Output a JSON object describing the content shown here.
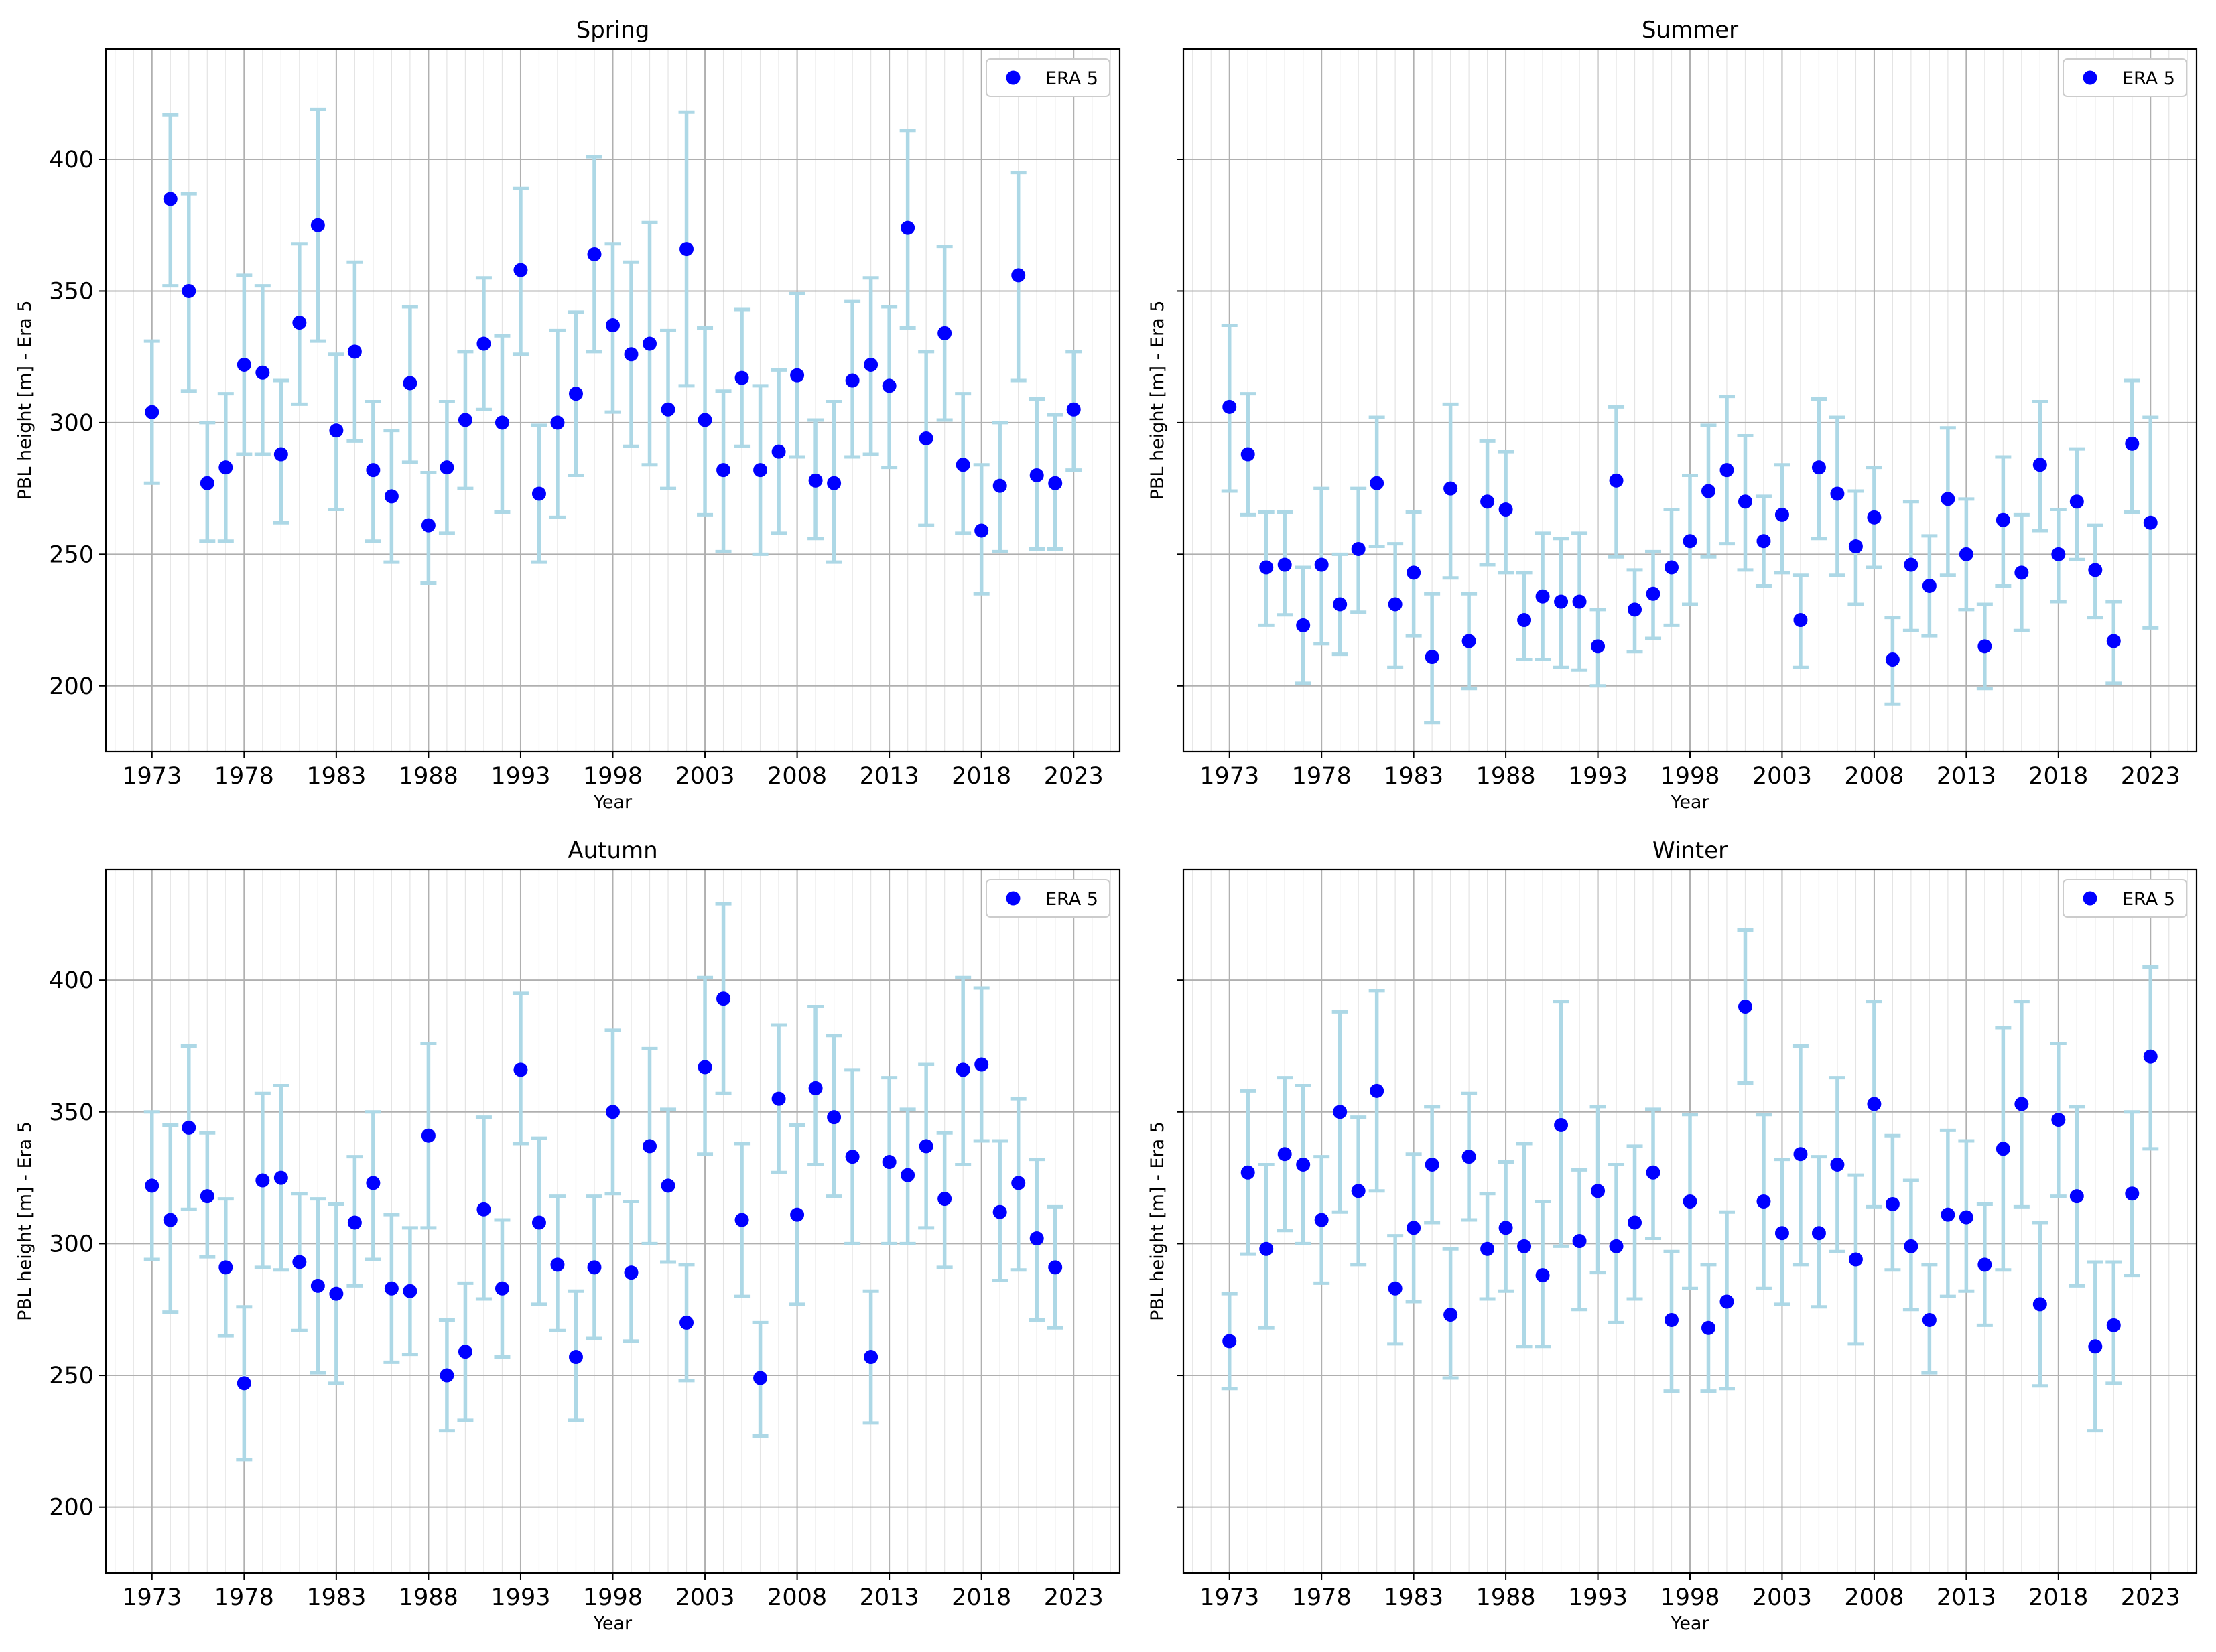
{
  "chart_data": [
    {
      "type": "scatter",
      "title": "Spring",
      "xlabel": "Year",
      "ylabel": "PBL height [m] - Era 5",
      "xlim": [
        1970.5,
        2025.5
      ],
      "ylim": [
        175,
        442
      ],
      "xticks": [
        "1973",
        "1978",
        "1983",
        "1988",
        "1993",
        "1998",
        "2003",
        "2008",
        "2013",
        "2018",
        "2023"
      ],
      "yticks": [
        "200",
        "250",
        "300",
        "350",
        "400"
      ],
      "show_ytick_labels": true,
      "grid": true,
      "legend": "upper right",
      "series": [
        {
          "name": "ERA 5",
          "color": "#0000ff",
          "errorbar_color": "#add8e6",
          "x": [
            1973,
            1974,
            1975,
            1976,
            1977,
            1978,
            1979,
            1980,
            1981,
            1982,
            1983,
            1984,
            1985,
            1986,
            1987,
            1988,
            1989,
            1990,
            1991,
            1992,
            1993,
            1994,
            1995,
            1996,
            1997,
            1998,
            1999,
            2000,
            2001,
            2002,
            2003,
            2004,
            2005,
            2006,
            2007,
            2008,
            2009,
            2010,
            2011,
            2012,
            2013,
            2014,
            2015,
            2016,
            2017,
            2018,
            2019,
            2020,
            2021,
            2022,
            2023
          ],
          "y": [
            304,
            385,
            350,
            277,
            283,
            322,
            319,
            288,
            338,
            375,
            297,
            327,
            282,
            272,
            315,
            261,
            283,
            301,
            330,
            300,
            358,
            273,
            300,
            311,
            364,
            337,
            326,
            330,
            305,
            366,
            301,
            282,
            317,
            282,
            289,
            318,
            278,
            277,
            316,
            322,
            314,
            374,
            294,
            334,
            284,
            259,
            276,
            356,
            280,
            277,
            305
          ],
          "yerr_low": [
            277,
            352,
            312,
            255,
            255,
            288,
            288,
            262,
            307,
            331,
            267,
            293,
            255,
            247,
            285,
            239,
            258,
            275,
            305,
            266,
            326,
            247,
            264,
            280,
            327,
            304,
            291,
            284,
            275,
            314,
            265,
            251,
            291,
            250,
            258,
            287,
            256,
            247,
            287,
            288,
            283,
            336,
            261,
            301,
            258,
            235,
            251,
            316,
            252,
            252,
            282
          ],
          "yerr_high": [
            331,
            417,
            387,
            300,
            311,
            356,
            352,
            316,
            368,
            419,
            326,
            361,
            308,
            297,
            344,
            281,
            308,
            327,
            355,
            333,
            389,
            299,
            335,
            342,
            401,
            368,
            361,
            376,
            335,
            418,
            336,
            312,
            343,
            314,
            320,
            349,
            301,
            308,
            346,
            355,
            344,
            411,
            327,
            367,
            311,
            284,
            300,
            395,
            309,
            303,
            327
          ]
        }
      ]
    },
    {
      "type": "scatter",
      "title": "Summer",
      "xlabel": "Year",
      "ylabel": "PBL height [m] - Era 5",
      "xlim": [
        1970.5,
        2025.5
      ],
      "ylim": [
        175,
        442
      ],
      "xticks": [
        "1973",
        "1978",
        "1983",
        "1988",
        "1993",
        "1998",
        "2003",
        "2008",
        "2013",
        "2018",
        "2023"
      ],
      "yticks": [
        "200",
        "250",
        "300",
        "350",
        "400"
      ],
      "show_ytick_labels": false,
      "grid": true,
      "legend": "upper right",
      "series": [
        {
          "name": "ERA 5",
          "color": "#0000ff",
          "errorbar_color": "#add8e6",
          "x": [
            1973,
            1974,
            1975,
            1976,
            1977,
            1978,
            1979,
            1980,
            1981,
            1982,
            1983,
            1984,
            1985,
            1986,
            1987,
            1988,
            1989,
            1990,
            1991,
            1992,
            1993,
            1994,
            1995,
            1996,
            1997,
            1998,
            1999,
            2000,
            2001,
            2002,
            2003,
            2004,
            2005,
            2006,
            2007,
            2008,
            2009,
            2010,
            2011,
            2012,
            2013,
            2014,
            2015,
            2016,
            2017,
            2018,
            2019,
            2020,
            2021,
            2022,
            2023
          ],
          "y": [
            306,
            288,
            245,
            246,
            223,
            246,
            231,
            252,
            277,
            231,
            243,
            211,
            275,
            217,
            270,
            267,
            225,
            234,
            232,
            232,
            215,
            278,
            229,
            235,
            245,
            255,
            274,
            282,
            270,
            255,
            265,
            225,
            283,
            273,
            253,
            264,
            210,
            246,
            238,
            271,
            250,
            215,
            263,
            243,
            284,
            250,
            270,
            244,
            217,
            292,
            262
          ],
          "yerr_low": [
            274,
            265,
            223,
            227,
            201,
            216,
            212,
            228,
            253,
            207,
            219,
            186,
            241,
            199,
            246,
            243,
            210,
            210,
            207,
            206,
            200,
            249,
            213,
            218,
            223,
            231,
            249,
            254,
            244,
            238,
            243,
            207,
            256,
            242,
            231,
            245,
            193,
            221,
            219,
            242,
            229,
            199,
            238,
            221,
            259,
            232,
            248,
            226,
            201,
            266,
            222
          ],
          "yerr_high": [
            337,
            311,
            266,
            266,
            245,
            275,
            250,
            275,
            302,
            254,
            266,
            235,
            307,
            235,
            293,
            289,
            243,
            258,
            256,
            258,
            229,
            306,
            244,
            251,
            267,
            280,
            299,
            310,
            295,
            272,
            284,
            242,
            309,
            302,
            274,
            283,
            226,
            270,
            257,
            298,
            271,
            231,
            287,
            265,
            308,
            267,
            290,
            261,
            232,
            316,
            302
          ]
        }
      ]
    },
    {
      "type": "scatter",
      "title": "Autumn",
      "xlabel": "Year",
      "ylabel": "PBL height [m] - Era 5",
      "xlim": [
        1970.5,
        2025.5
      ],
      "ylim": [
        175,
        442
      ],
      "xticks": [
        "1973",
        "1978",
        "1983",
        "1988",
        "1993",
        "1998",
        "2003",
        "2008",
        "2013",
        "2018",
        "2023"
      ],
      "yticks": [
        "200",
        "250",
        "300",
        "350",
        "400"
      ],
      "show_ytick_labels": true,
      "grid": true,
      "legend": "upper right",
      "series": [
        {
          "name": "ERA 5",
          "color": "#0000ff",
          "errorbar_color": "#add8e6",
          "x": [
            1973,
            1974,
            1975,
            1976,
            1977,
            1978,
            1979,
            1980,
            1981,
            1982,
            1983,
            1984,
            1985,
            1986,
            1987,
            1988,
            1989,
            1990,
            1991,
            1992,
            1993,
            1994,
            1995,
            1996,
            1997,
            1998,
            1999,
            2000,
            2001,
            2002,
            2003,
            2004,
            2005,
            2006,
            2007,
            2008,
            2009,
            2010,
            2011,
            2012,
            2013,
            2014,
            2015,
            2016,
            2017,
            2018,
            2019,
            2020,
            2021,
            2022
          ],
          "y": [
            322,
            309,
            344,
            318,
            291,
            247,
            324,
            325,
            293,
            284,
            281,
            308,
            323,
            283,
            282,
            341,
            250,
            259,
            313,
            283,
            366,
            308,
            292,
            257,
            291,
            350,
            289,
            337,
            322,
            270,
            367,
            393,
            309,
            249,
            355,
            311,
            359,
            348,
            333,
            257,
            331,
            326,
            337,
            317,
            366,
            368,
            312,
            323,
            302,
            291
          ],
          "yerr_low": [
            294,
            274,
            313,
            295,
            265,
            218,
            291,
            290,
            267,
            251,
            247,
            284,
            294,
            255,
            258,
            306,
            229,
            233,
            279,
            257,
            338,
            277,
            267,
            233,
            264,
            319,
            263,
            300,
            293,
            248,
            334,
            357,
            280,
            227,
            327,
            277,
            330,
            318,
            300,
            232,
            300,
            300,
            306,
            291,
            330,
            339,
            286,
            290,
            271,
            268
          ],
          "yerr_high": [
            350,
            345,
            375,
            342,
            317,
            276,
            357,
            360,
            319,
            317,
            315,
            333,
            350,
            311,
            306,
            376,
            271,
            285,
            348,
            309,
            395,
            340,
            318,
            282,
            318,
            381,
            316,
            374,
            351,
            292,
            401,
            429,
            338,
            270,
            383,
            345,
            390,
            379,
            366,
            282,
            363,
            351,
            368,
            342,
            401,
            397,
            339,
            355,
            332,
            314
          ]
        }
      ]
    },
    {
      "type": "scatter",
      "title": "Winter",
      "xlabel": "Year",
      "ylabel": "PBL height [m] - Era 5",
      "xlim": [
        1970.5,
        2025.5
      ],
      "ylim": [
        175,
        442
      ],
      "xticks": [
        "1973",
        "1978",
        "1983",
        "1988",
        "1993",
        "1998",
        "2003",
        "2008",
        "2013",
        "2018",
        "2023"
      ],
      "yticks": [
        "200",
        "250",
        "300",
        "350",
        "400"
      ],
      "show_ytick_labels": false,
      "grid": true,
      "legend": "upper right",
      "series": [
        {
          "name": "ERA 5",
          "color": "#0000ff",
          "errorbar_color": "#add8e6",
          "x": [
            1973,
            1974,
            1975,
            1976,
            1977,
            1978,
            1979,
            1980,
            1981,
            1982,
            1983,
            1984,
            1985,
            1986,
            1987,
            1988,
            1989,
            1990,
            1991,
            1992,
            1993,
            1994,
            1995,
            1996,
            1997,
            1998,
            1999,
            2000,
            2001,
            2002,
            2003,
            2004,
            2005,
            2006,
            2007,
            2008,
            2009,
            2010,
            2011,
            2012,
            2013,
            2014,
            2015,
            2016,
            2017,
            2018,
            2019,
            2020,
            2021,
            2022,
            2023
          ],
          "y": [
            263,
            327,
            298,
            334,
            330,
            309,
            350,
            320,
            358,
            283,
            306,
            330,
            273,
            333,
            298,
            306,
            299,
            288,
            345,
            301,
            320,
            299,
            308,
            327,
            271,
            316,
            268,
            278,
            390,
            316,
            304,
            334,
            304,
            330,
            294,
            353,
            315,
            299,
            271,
            311,
            310,
            292,
            336,
            353,
            277,
            347,
            318,
            261,
            269,
            319,
            371
          ],
          "yerr_low": [
            245,
            296,
            268,
            305,
            300,
            285,
            312,
            292,
            320,
            262,
            278,
            308,
            249,
            309,
            279,
            282,
            261,
            261,
            299,
            275,
            289,
            270,
            279,
            302,
            244,
            283,
            244,
            245,
            361,
            283,
            277,
            292,
            276,
            297,
            262,
            314,
            290,
            275,
            251,
            280,
            282,
            269,
            290,
            314,
            246,
            318,
            284,
            229,
            247,
            288,
            336
          ],
          "yerr_high": [
            281,
            358,
            330,
            363,
            360,
            333,
            388,
            348,
            396,
            303,
            334,
            352,
            298,
            357,
            319,
            331,
            338,
            316,
            392,
            328,
            352,
            330,
            337,
            351,
            297,
            349,
            292,
            312,
            419,
            349,
            332,
            375,
            333,
            363,
            326,
            392,
            341,
            324,
            292,
            343,
            339,
            315,
            382,
            392,
            308,
            376,
            352,
            293,
            293,
            350,
            405
          ]
        }
      ]
    }
  ]
}
